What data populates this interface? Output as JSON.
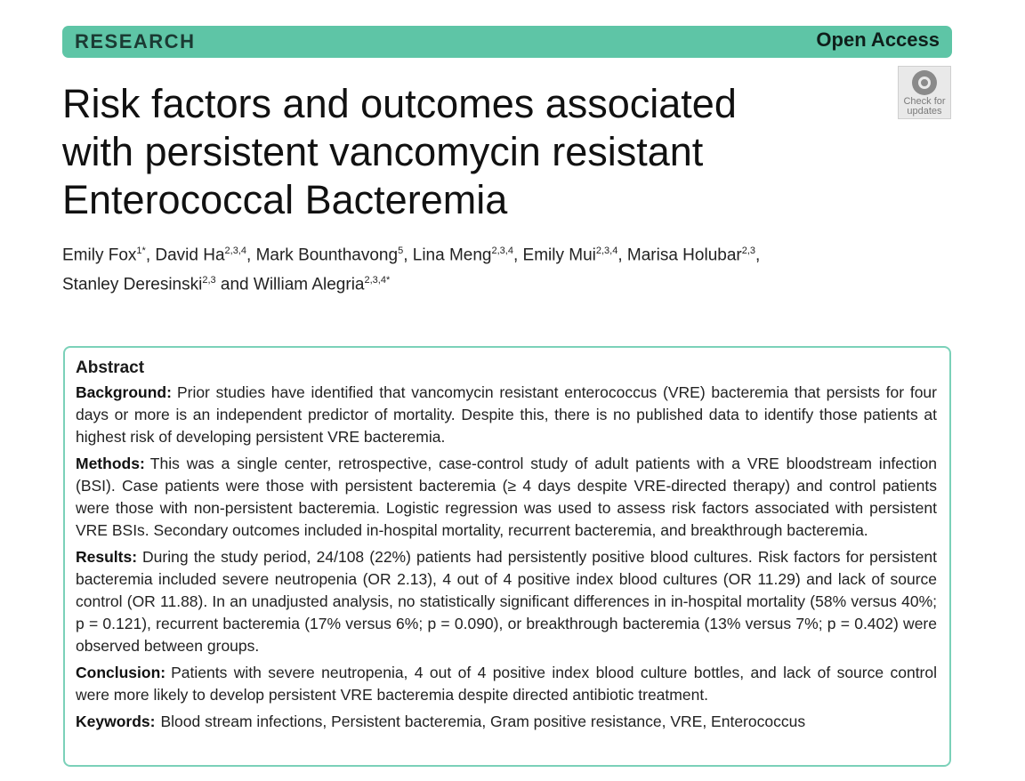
{
  "banner": {
    "section": "RESEARCH",
    "access": "Open Access"
  },
  "badge": {
    "icon": "check-for-updates-icon",
    "line1": "Check for",
    "line2": "updates"
  },
  "title_lines": [
    "Risk factors and outcomes associated",
    "with persistent vancomycin resistant",
    "Enterococcal Bacteremia"
  ],
  "authors": {
    "line1": [
      {
        "name": "Emily Fox",
        "sup": "1*",
        "sep": ", "
      },
      {
        "name": "David Ha",
        "sup": "2,3,4",
        "sep": ", "
      },
      {
        "name": "Mark Bounthavong",
        "sup": "5",
        "sep": ", "
      },
      {
        "name": "Lina Meng",
        "sup": "2,3,4",
        "sep": ", "
      },
      {
        "name": "Emily Mui",
        "sup": "2,3,4",
        "sep": ", "
      },
      {
        "name": "Marisa Holubar",
        "sup": "2,3",
        "sep": ","
      }
    ],
    "line2": [
      {
        "name": "Stanley Deresinski",
        "sup": "2,3",
        "sep": " and "
      },
      {
        "name": "William Alegria",
        "sup": "2,3,4*",
        "sep": ""
      }
    ]
  },
  "abstract": {
    "heading": "Abstract",
    "background_label": "Background:",
    "background_text": "Prior studies have identified that vancomycin resistant enterococcus (VRE) bacteremia that persists for four days or more is an independent predictor of mortality. Despite this, there is no published data to identify those patients at highest risk of developing persistent VRE bacteremia.",
    "methods_label": "Methods:",
    "methods_text": "This was a single center, retrospective, case-control study of adult patients with a VRE bloodstream infection (BSI). Case patients were those with persistent bacteremia (≥ 4 days despite VRE-directed therapy) and control patients were those with non-persistent bacteremia. Logistic regression was used to assess risk factors associated with persistent VRE BSIs. Secondary outcomes included in-hospital mortality, recurrent bacteremia, and breakthrough bacteremia.",
    "results_label": "Results:",
    "results_text": "During the study period, 24/108 (22%) patients had persistently positive blood cultures. Risk factors for persistent bacteremia included severe neutropenia (OR 2.13), 4 out of 4 positive index blood cultures (OR 11.29) and lack of source control (OR 11.88). In an unadjusted analysis, no statistically significant differences in in-hospital mortality (58% versus 40%; p = 0.121), recurrent bacteremia (17% versus 6%; p = 0.090), or breakthrough bacteremia (13% versus 7%; p = 0.402) were observed between groups.",
    "conclusion_label": "Conclusion:",
    "conclusion_text": "Patients with severe neutropenia, 4 out of 4 positive index blood culture bottles, and lack of source control were more likely to develop persistent VRE bacteremia despite directed antibiotic treatment.",
    "keywords_label": "Keywords:",
    "keywords_text": "Blood stream infections, Persistent bacteremia, Gram positive resistance, VRE, Enterococcus"
  }
}
